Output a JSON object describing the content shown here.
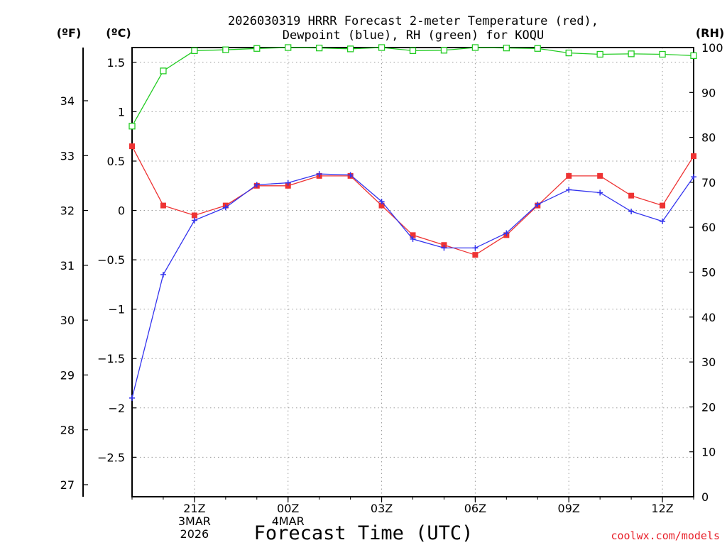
{
  "chart_data": {
    "type": "line",
    "title": [
      "2026030319 HRRR Forecast 2-meter Temperature (red),",
      "Dewpoint (blue), RH (green) for KOQU"
    ],
    "xlabel": "Forecast Time (UTC)",
    "credit": "coolwx.com/models",
    "units": {
      "fahrenheit": "(ºF)",
      "celsius": "(ºC)",
      "rh": "(RH)"
    },
    "x_tick_labels": [
      {
        "hour": 2,
        "lines": [
          "21Z",
          "3MAR",
          "2026"
        ]
      },
      {
        "hour": 5,
        "lines": [
          "00Z",
          "4MAR"
        ]
      },
      {
        "hour": 8,
        "lines": [
          "03Z"
        ]
      },
      {
        "hour": 11,
        "lines": [
          "06Z"
        ]
      },
      {
        "hour": 14,
        "lines": [
          "09Z"
        ]
      },
      {
        "hour": 17,
        "lines": [
          "12Z"
        ]
      }
    ],
    "x": [
      0,
      1,
      2,
      3,
      4,
      5,
      6,
      7,
      8,
      9,
      10,
      11,
      12,
      13,
      14,
      15,
      16,
      17,
      18
    ],
    "xlim": [
      0,
      18
    ],
    "celsius_axis": {
      "ylim": [
        -2.9,
        1.65
      ],
      "ticks": [
        1.5,
        1,
        0.5,
        0,
        -0.5,
        -1,
        -1.5,
        -2,
        -2.5
      ],
      "tick_labels": [
        "1.5",
        "1",
        "0.5",
        "0",
        "−0.5",
        "−1",
        "−1.5",
        "−2",
        "−2.5"
      ]
    },
    "fahrenheit_axis": {
      "ticks": [
        34,
        33,
        32,
        31,
        30,
        29,
        28,
        27
      ],
      "tick_labels": [
        "34",
        "33",
        "32",
        "31",
        "30",
        "29",
        "28",
        "27"
      ]
    },
    "rh_axis": {
      "ylim": [
        0,
        100
      ],
      "ticks": [
        100,
        90,
        80,
        70,
        60,
        50,
        40,
        30,
        20,
        10,
        0
      ],
      "tick_labels": [
        "100",
        "90",
        "80",
        "70",
        "60",
        "50",
        "40",
        "30",
        "20",
        "10",
        "0"
      ]
    },
    "grid": true,
    "series": [
      {
        "name": "Temperature",
        "axis": "celsius",
        "color": "#ee3333",
        "marker": "filled-square",
        "values": [
          0.65,
          0.05,
          -0.05,
          0.05,
          0.25,
          0.25,
          0.35,
          0.35,
          0.05,
          -0.25,
          -0.35,
          -0.45,
          -0.25,
          0.05,
          0.35,
          0.35,
          0.15,
          0.05,
          0.55
        ]
      },
      {
        "name": "Dewpoint",
        "axis": "celsius",
        "color": "#3333ee",
        "marker": "plus",
        "values": [
          -1.9,
          -0.65,
          -0.1,
          0.03,
          0.26,
          0.28,
          0.37,
          0.36,
          0.09,
          -0.29,
          -0.38,
          -0.38,
          -0.23,
          0.06,
          0.21,
          0.18,
          -0.01,
          -0.11,
          0.34
        ]
      },
      {
        "name": "RH",
        "axis": "rh",
        "color": "#22cc22",
        "marker": "open-square",
        "values": [
          82.5,
          94.8,
          99.3,
          99.5,
          99.8,
          100,
          99.9,
          99.7,
          100,
          99.3,
          99.4,
          100,
          99.9,
          99.8,
          98.8,
          98.5,
          98.6,
          98.5,
          98.2
        ]
      }
    ]
  }
}
